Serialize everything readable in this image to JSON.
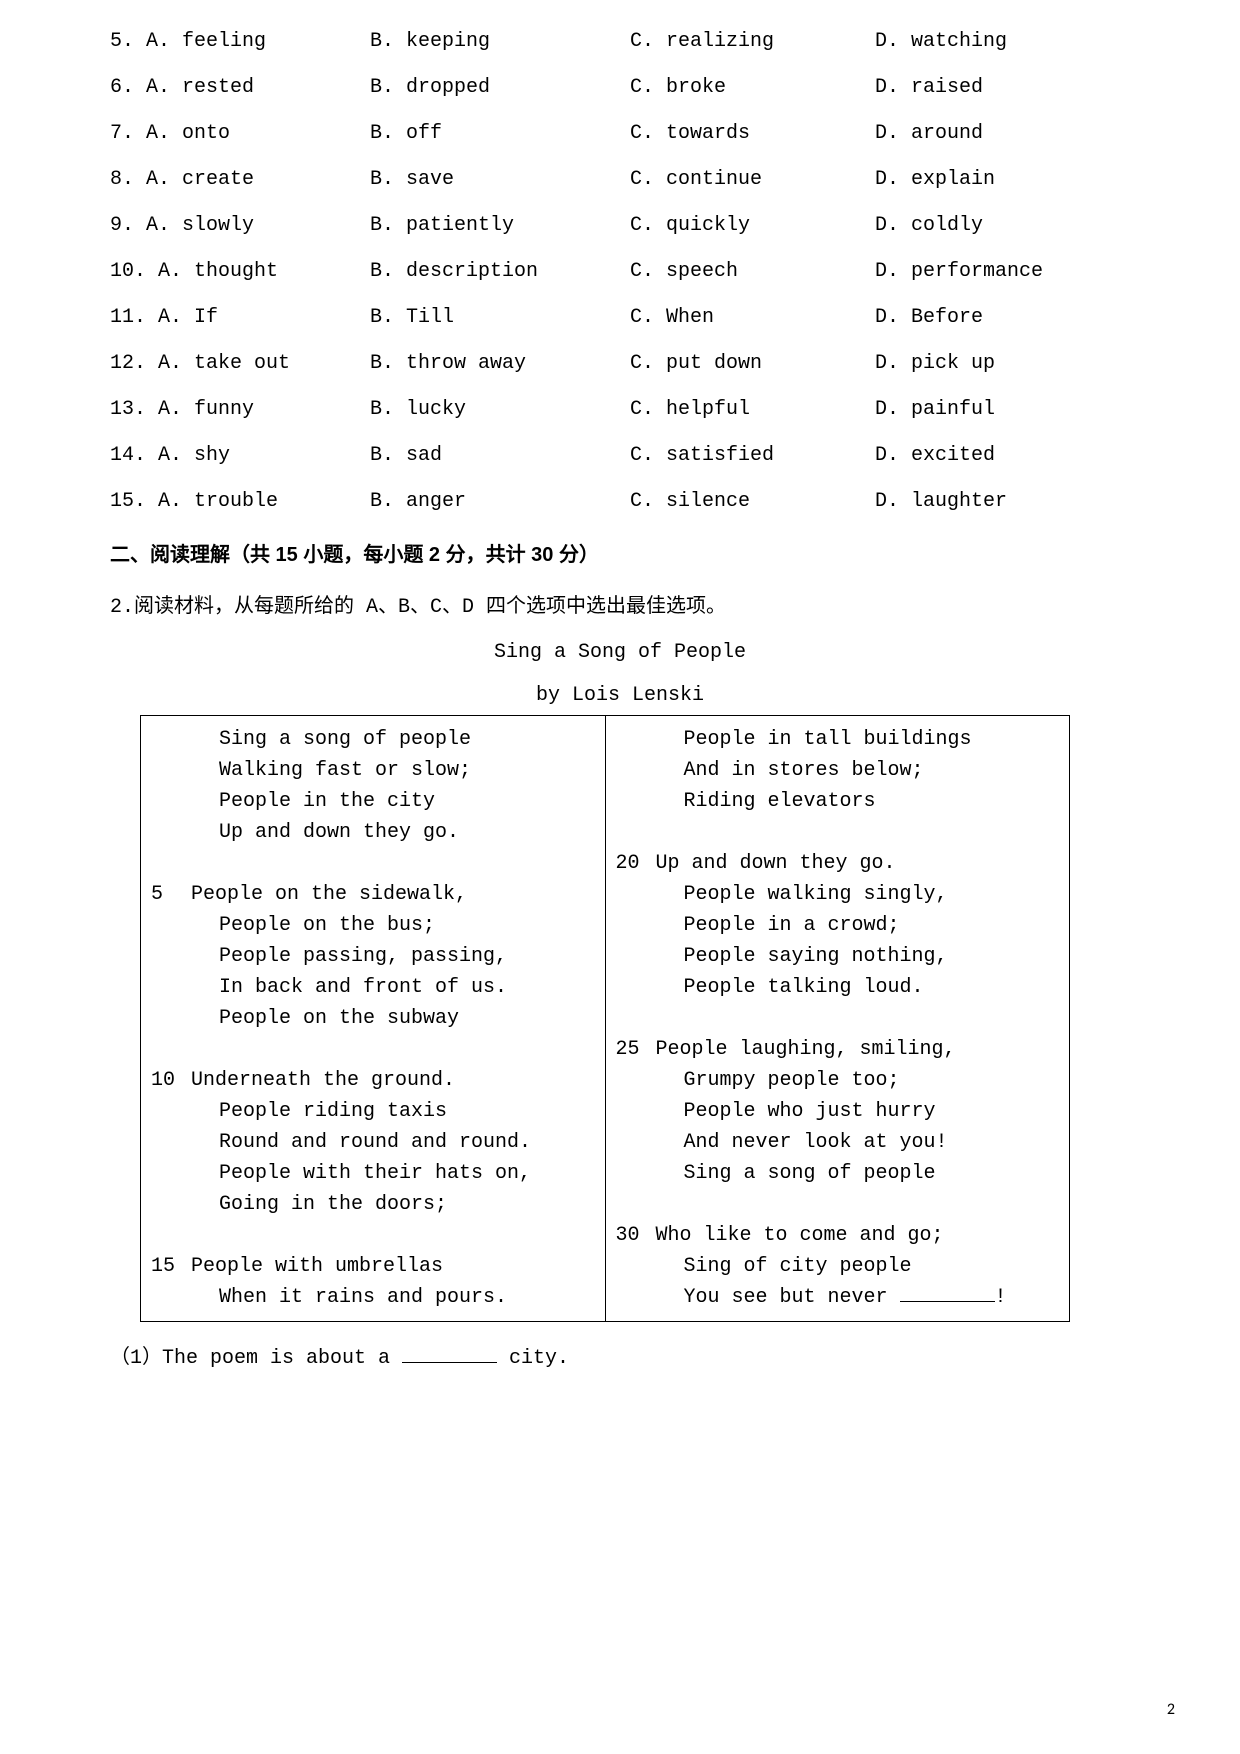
{
  "options": {
    "rows": [
      {
        "n": "5.",
        "a": "A.  feeling",
        "b": "B.  keeping",
        "c": "C.  realizing",
        "d": "D.  watching"
      },
      {
        "n": "6.",
        "a": "A.  rested",
        "b": "B.  dropped",
        "c": "C.  broke",
        "d": "D.  raised"
      },
      {
        "n": "7.",
        "a": "A.  onto",
        "b": "B.  off",
        "c": "C.  towards",
        "d": "D.  around"
      },
      {
        "n": "8.",
        "a": "A.  create",
        "b": "B.  save",
        "c": "C.  continue",
        "d": "D.  explain"
      },
      {
        "n": "9.",
        "a": "A.  slowly",
        "b": "B.  patiently",
        "c": "C.  quickly",
        "d": "D.  coldly"
      },
      {
        "n": "10.",
        "a": "A.  thought",
        "b": "B.  description",
        "c": "C.  speech",
        "d": "D.  performance"
      },
      {
        "n": "11.",
        "a": "A.  If",
        "b": "B.  Till",
        "c": "C.  When",
        "d": "D.  Before"
      },
      {
        "n": "12.",
        "a": "A.  take out",
        "b": "B.  throw away",
        "c": "C.  put down",
        "d": "D.  pick up"
      },
      {
        "n": "13.",
        "a": "A.  funny",
        "b": "B.  lucky",
        "c": "C.  helpful",
        "d": "D.  painful"
      },
      {
        "n": "14.",
        "a": "A.  shy",
        "b": "B.  sad",
        "c": "C.  satisfied",
        "d": "D.  excited"
      },
      {
        "n": "15.",
        "a": "A.  trouble",
        "b": "B.  anger",
        "c": "C.  silence",
        "d": "D.  laughter"
      }
    ]
  },
  "section_heading": "二、阅读理解（共 15 小题，每小题 2 分，共计 30 分）",
  "instruction": "2.阅读材料，从每题所给的 A、B、C、D 四个选项中选出最佳选项。",
  "poem_title": "Sing a Song of People",
  "poem_author": "by Lois Lenski",
  "poem_left": [
    {
      "num": "",
      "text": "Sing a song of people",
      "ind": 1
    },
    {
      "num": "",
      "text": "Walking fast or slow;",
      "ind": 1
    },
    {
      "num": "",
      "text": "People in the city",
      "ind": 1
    },
    {
      "num": "",
      "text": "Up and down they go.",
      "ind": 1
    },
    {
      "num": "",
      "text": "",
      "ind": 0
    },
    {
      "num": "5",
      "text": "People on the sidewalk,",
      "ind": 0
    },
    {
      "num": "",
      "text": "People on the bus;",
      "ind": 1
    },
    {
      "num": "",
      "text": "People passing, passing,",
      "ind": 1
    },
    {
      "num": "",
      "text": "In back and front of us.",
      "ind": 1
    },
    {
      "num": "",
      "text": "People on the subway",
      "ind": 1
    },
    {
      "num": "",
      "text": "",
      "ind": 0
    },
    {
      "num": "10",
      "text": "Underneath the ground.",
      "ind": 0
    },
    {
      "num": "",
      "text": "People riding taxis",
      "ind": 1
    },
    {
      "num": "",
      "text": "Round and round and round.",
      "ind": 1
    },
    {
      "num": "",
      "text": "People with their hats on,",
      "ind": 1
    },
    {
      "num": "",
      "text": "Going in the doors;",
      "ind": 1
    },
    {
      "num": "",
      "text": "",
      "ind": 0
    },
    {
      "num": "15",
      "text": "People with umbrellas",
      "ind": 0
    },
    {
      "num": "",
      "text": "When it rains and pours.",
      "ind": 1
    }
  ],
  "poem_right": [
    {
      "num": "",
      "text": "People in tall buildings",
      "ind": 1
    },
    {
      "num": "",
      "text": "And in stores below;",
      "ind": 1
    },
    {
      "num": "",
      "text": "Riding elevators",
      "ind": 1
    },
    {
      "num": "",
      "text": "",
      "ind": 0
    },
    {
      "num": "20",
      "text": "Up and down they go.",
      "ind": 0
    },
    {
      "num": "",
      "text": "People walking singly,",
      "ind": 1
    },
    {
      "num": "",
      "text": "People in a crowd;",
      "ind": 1
    },
    {
      "num": "",
      "text": "People saying nothing,",
      "ind": 1
    },
    {
      "num": "",
      "text": "People talking loud.",
      "ind": 1
    },
    {
      "num": "",
      "text": "",
      "ind": 0
    },
    {
      "num": "25",
      "text": "People laughing, smiling,",
      "ind": 0
    },
    {
      "num": "",
      "text": "Grumpy people too;",
      "ind": 1
    },
    {
      "num": "",
      "text": "People who just hurry",
      "ind": 1
    },
    {
      "num": "",
      "text": "And never look at you!",
      "ind": 1
    },
    {
      "num": "",
      "text": "Sing a song of people",
      "ind": 1
    },
    {
      "num": "",
      "text": "",
      "ind": 0
    },
    {
      "num": "30",
      "text": "Who like to come and go;",
      "ind": 0
    },
    {
      "num": "",
      "text": "Sing of city people",
      "ind": 1
    }
  ],
  "poem_last_line_prefix": "You see but never ",
  "poem_last_line_suffix": "!",
  "question_1_prefix": "（1）The poem is about a ",
  "question_1_suffix": " city.",
  "page_number": "2"
}
